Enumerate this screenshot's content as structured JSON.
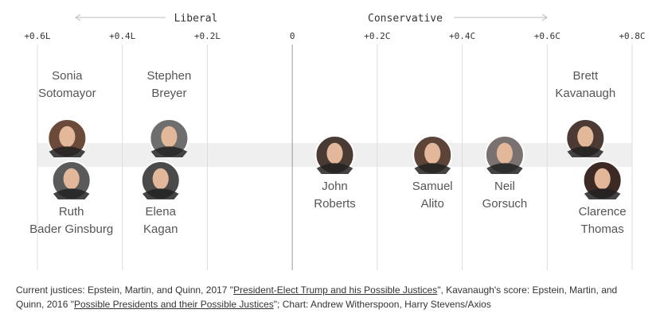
{
  "chart_data": {
    "type": "scatter",
    "title": "",
    "xlabel": "",
    "ylabel": "",
    "direction_labels": {
      "left": "Liberal",
      "right": "Conservative"
    },
    "x_ticks": [
      {
        "value": -0.6,
        "label": "+0.6L"
      },
      {
        "value": -0.4,
        "label": "+0.4L"
      },
      {
        "value": -0.2,
        "label": "+0.2L"
      },
      {
        "value": 0,
        "label": "0"
      },
      {
        "value": 0.2,
        "label": "+0.2C"
      },
      {
        "value": 0.4,
        "label": "+0.4C"
      },
      {
        "value": 0.6,
        "label": "+0.6C"
      },
      {
        "value": 0.8,
        "label": "+0.8C"
      }
    ],
    "xlim": [
      -0.6,
      0.8
    ],
    "grid": true,
    "points": [
      {
        "name_lines": [
          "Sonia",
          "Sotomayor"
        ],
        "x": -0.53,
        "label_position": "above",
        "photo_row": "upper",
        "photo_color": "#6b4a3a"
      },
      {
        "name_lines": [
          "Ruth",
          "Bader Ginsburg"
        ],
        "x": -0.52,
        "label_position": "below",
        "photo_row": "lower",
        "photo_color": "#5a5a5a"
      },
      {
        "name_lines": [
          "Stephen",
          "Breyer"
        ],
        "x": -0.29,
        "label_position": "above",
        "photo_row": "upper",
        "photo_color": "#6e6e6e"
      },
      {
        "name_lines": [
          "Elena",
          "Kagan"
        ],
        "x": -0.31,
        "label_position": "below",
        "photo_row": "lower",
        "photo_color": "#4a4a4a"
      },
      {
        "name_lines": [
          "John",
          "Roberts"
        ],
        "x": 0.1,
        "label_position": "below",
        "photo_row": "middle",
        "photo_color": "#4a3a34"
      },
      {
        "name_lines": [
          "Samuel",
          "Alito"
        ],
        "x": 0.33,
        "label_position": "below",
        "photo_row": "middle",
        "photo_color": "#5c4438"
      },
      {
        "name_lines": [
          "Neil",
          "Gorsuch"
        ],
        "x": 0.5,
        "label_position": "below",
        "photo_row": "middle",
        "photo_color": "#7a7270"
      },
      {
        "name_lines": [
          "Brett",
          "Kavanaugh"
        ],
        "x": 0.69,
        "label_position": "above",
        "photo_row": "upper",
        "photo_color": "#4e3a34"
      },
      {
        "name_lines": [
          "Clarence",
          "Thomas"
        ],
        "x": 0.73,
        "label_position": "below",
        "photo_row": "lower",
        "photo_color": "#3e2a24"
      }
    ]
  },
  "source": {
    "text_1": "Current justices: Epstein, Martin, and Quinn, 2017 \"",
    "link_1": "President-Elect Trump and his Possible Justices",
    "text_2": "\", Kavanaugh's score: Epstein, Martin, and Quinn, 2016 \"",
    "link_2": "Possible Presidents and their Possible Justices",
    "text_3": "\"; Chart: Andrew Witherspoon, Harry Stevens/Axios"
  },
  "colors": {
    "band": "#efefef",
    "gridline": "#dddddd",
    "zero_line": "#999999",
    "text": "#333333",
    "name_text": "#555555",
    "arrow": "#bbbbbb"
  }
}
